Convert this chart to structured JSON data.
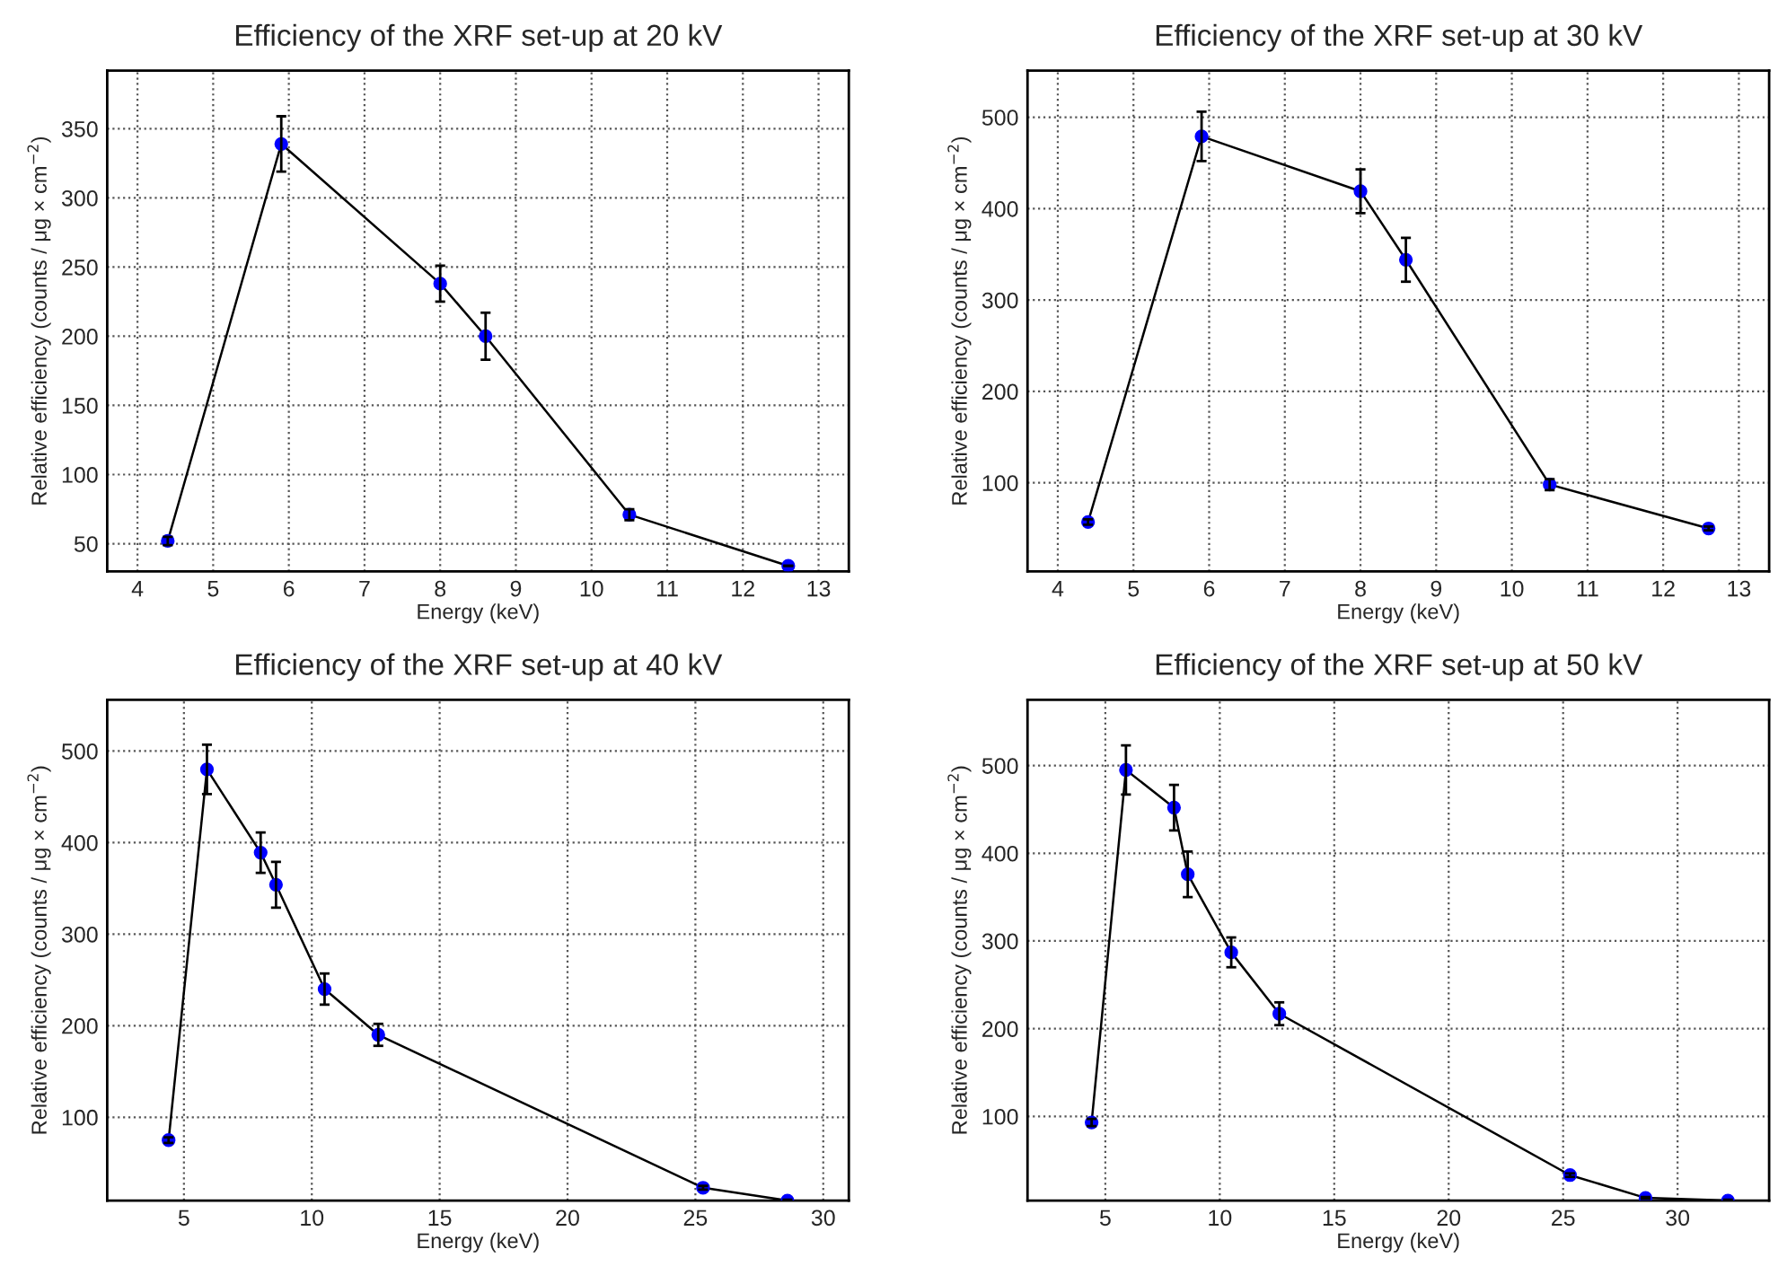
{
  "chart_data": [
    {
      "type": "line",
      "title": "Efficiency of the XRF set-up at 20 kV",
      "xlabel": "Energy (keV)",
      "ylabel": "Relative efficiency (counts / μg × cm$^{−2}$)",
      "x": [
        4.4,
        5.9,
        8.0,
        8.6,
        10.5,
        12.6
      ],
      "series": [
        {
          "color": "#0000ff",
          "values": [
            52,
            339,
            238,
            200,
            71,
            34
          ],
          "errors": [
            3,
            20,
            13,
            17,
            4,
            null
          ]
        }
      ],
      "xlim": [
        3.6,
        13.4
      ],
      "ylim": [
        30,
        392
      ],
      "xticks": [
        4,
        5,
        6,
        7,
        8,
        9,
        10,
        11,
        12,
        13
      ],
      "yticks": [
        50,
        100,
        150,
        200,
        250,
        300,
        350
      ],
      "grid": true,
      "marker": "circle",
      "line_style": "solid"
    },
    {
      "type": "line",
      "title": "Efficiency of the XRF set-up at 30 kV",
      "xlabel": "Energy (keV)",
      "ylabel": "Relative efficiency (counts / μg × cm$^{−2}$)",
      "x": [
        4.4,
        5.9,
        8.0,
        8.6,
        10.5,
        12.6
      ],
      "series": [
        {
          "color": "#0000ff",
          "values": [
            57,
            479,
            419,
            344,
            98,
            50
          ],
          "errors": [
            3,
            27,
            24,
            24,
            6,
            2
          ]
        }
      ],
      "xlim": [
        3.6,
        13.4
      ],
      "ylim": [
        3,
        551
      ],
      "xticks": [
        4,
        5,
        6,
        7,
        8,
        9,
        10,
        11,
        12,
        13
      ],
      "yticks": [
        100,
        200,
        300,
        400,
        500
      ],
      "grid": true,
      "marker": "circle",
      "line_style": "solid"
    },
    {
      "type": "line",
      "title": "Efficiency of the XRF set-up at 40 kV",
      "xlabel": "Energy (keV)",
      "ylabel": "Relative efficiency (counts / μg × cm$^{−2}$)",
      "x": [
        4.4,
        5.9,
        8.0,
        8.6,
        10.5,
        12.6,
        25.3,
        28.6
      ],
      "series": [
        {
          "color": "#0000ff",
          "values": [
            75,
            480,
            389,
            354,
            240,
            190,
            23,
            9
          ],
          "errors": [
            3,
            27,
            22,
            25,
            17,
            12,
            2,
            1
          ]
        }
      ],
      "xlim": [
        2,
        31
      ],
      "ylim": [
        9,
        556
      ],
      "xticks": [
        5,
        10,
        15,
        20,
        25,
        30
      ],
      "yticks": [
        100,
        200,
        300,
        400,
        500
      ],
      "grid": true,
      "marker": "circle",
      "line_style": "solid"
    },
    {
      "type": "line",
      "title": "Efficiency of the XRF set-up at 50 kV",
      "xlabel": "Energy (keV)",
      "ylabel": "Relative efficiency (counts / μg × cm$^{−2}$)",
      "x": [
        4.4,
        5.9,
        8.0,
        8.6,
        10.5,
        12.6,
        25.3,
        28.6,
        32.2
      ],
      "series": [
        {
          "color": "#0000ff",
          "values": [
            93,
            495,
            452,
            376,
            287,
            217,
            33,
            7,
            4
          ],
          "errors": [
            4,
            28,
            26,
            26,
            17,
            13,
            2,
            1,
            1
          ]
        }
      ],
      "xlim": [
        1.6,
        34
      ],
      "ylim": [
        4,
        575
      ],
      "xticks": [
        5,
        10,
        15,
        20,
        25,
        30
      ],
      "yticks": [
        100,
        200,
        300,
        400,
        500
      ],
      "grid": true,
      "marker": "circle",
      "line_style": "solid"
    }
  ]
}
